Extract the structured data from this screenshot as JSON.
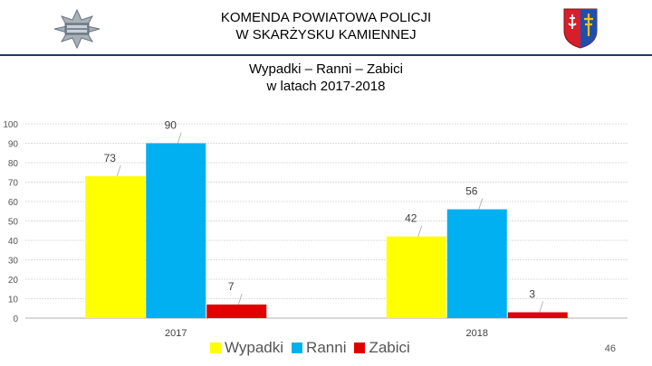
{
  "header": {
    "title_line1": "KOMENDA POWIATOWA POLICJI",
    "title_line2": "W SKARŻYSKU KAMIENNEJ"
  },
  "chart_data": {
    "type": "bar",
    "title_line1": "Wypadki – Ranni – Zabici",
    "title_line2": "w latach 2017-2018",
    "categories": [
      "2017",
      "2018"
    ],
    "series": [
      {
        "name": "Wypadki",
        "values": [
          73,
          42
        ],
        "color": "#ffff00"
      },
      {
        "name": "Ranni",
        "values": [
          90,
          56
        ],
        "color": "#00b0f0"
      },
      {
        "name": "Zabici",
        "values": [
          7,
          3
        ],
        "color": "#e00000"
      }
    ],
    "ylim": [
      0,
      100
    ],
    "yticks": [
      "0",
      "10",
      "20",
      "30",
      "40",
      "50",
      "60",
      "70",
      "80",
      "90",
      "100"
    ],
    "grid": true,
    "legend_position": "bottom"
  },
  "page_number": "46"
}
